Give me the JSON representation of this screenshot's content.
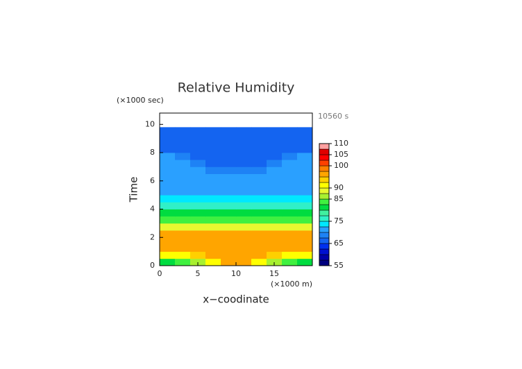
{
  "chart_data": {
    "type": "contour",
    "title": "Relative Humidity",
    "y_unit": "(×1000 sec)",
    "time_label": "10560 s",
    "ylabel": "Time",
    "x_unit": "(×1000 m)",
    "xlabel": "x−coodinate",
    "xlim": [
      0,
      20
    ],
    "ylim": [
      0,
      10.8
    ],
    "xticks": [
      0,
      5,
      10,
      15
    ],
    "yticks": [
      0,
      2,
      4,
      6,
      8,
      10
    ],
    "x_edges": [
      0,
      2,
      4,
      6,
      8,
      10,
      12,
      14,
      16,
      18,
      20
    ],
    "y_edges": [
      0,
      0.5,
      1,
      1.5,
      2,
      2.5,
      3,
      3.5,
      4,
      4.5,
      5,
      5.5,
      6,
      6.5,
      7,
      7.5,
      8,
      8.5,
      9,
      9.5,
      9.8
    ],
    "z": [
      [
        82,
        84,
        87,
        91,
        96,
        96,
        91,
        87,
        84,
        82
      ],
      [
        90,
        91,
        93,
        95,
        96,
        96,
        95,
        93,
        91,
        90
      ],
      [
        96,
        96,
        96,
        96,
        96,
        96,
        96,
        96,
        96,
        96
      ],
      [
        96,
        96,
        96,
        96,
        96,
        96,
        96,
        96,
        96,
        96
      ],
      [
        96,
        96,
        96,
        96,
        96,
        96,
        96,
        96,
        96,
        96
      ],
      [
        88,
        88,
        88,
        88,
        88,
        88,
        88,
        88,
        88,
        88
      ],
      [
        83,
        83,
        83,
        83,
        83,
        83,
        83,
        83,
        83,
        83
      ],
      [
        80,
        80,
        80,
        80,
        80,
        80,
        80,
        80,
        80,
        80
      ],
      [
        76,
        76,
        77,
        77,
        77,
        77,
        77,
        77,
        76,
        76
      ],
      [
        74,
        74,
        74,
        74,
        74,
        74,
        74,
        74,
        74,
        74
      ],
      [
        71,
        71,
        71,
        71,
        71,
        71,
        71,
        71,
        71,
        71
      ],
      [
        71,
        71,
        71,
        71,
        71,
        71,
        71,
        71,
        71,
        71
      ],
      [
        71,
        71,
        71,
        71,
        71,
        71,
        71,
        71,
        71,
        71
      ],
      [
        71,
        71,
        70,
        69,
        69,
        69,
        69,
        70,
        71,
        71
      ],
      [
        71,
        70,
        68,
        67,
        67,
        67,
        67,
        68,
        70,
        71
      ],
      [
        70,
        69,
        67,
        67,
        67,
        67,
        67,
        67,
        69,
        70
      ],
      [
        67,
        67,
        67,
        67,
        67,
        67,
        67,
        67,
        67,
        67
      ],
      [
        67,
        67,
        67,
        67,
        67,
        67,
        67,
        67,
        67,
        67
      ],
      [
        67,
        67,
        67,
        67,
        67,
        67,
        67,
        67,
        67,
        67
      ],
      [
        67,
        67,
        67,
        67,
        67,
        67,
        67,
        67,
        67,
        67
      ]
    ],
    "levels": [
      55,
      57.5,
      60,
      62.5,
      65,
      67.5,
      70,
      72.5,
      75,
      77.5,
      80,
      82.5,
      85,
      87.5,
      90,
      92.5,
      95,
      97.5,
      100,
      102.5,
      105,
      107.5,
      110
    ],
    "colors": [
      "#00007f",
      "#0000a8",
      "#0010d0",
      "#0030ee",
      "#1464f0",
      "#1e82f5",
      "#2aa0ff",
      "#00e8ff",
      "#30f0c8",
      "#40f0a0",
      "#00dc40",
      "#40f040",
      "#a8f030",
      "#e8f830",
      "#ffff00",
      "#ffd000",
      "#ffa500",
      "#ff8000",
      "#ff4000",
      "#ff0000",
      "#e00000",
      "#ffa0a0"
    ],
    "colorbar_ticks": [
      55,
      65,
      75,
      85,
      90,
      100,
      105,
      110
    ]
  }
}
